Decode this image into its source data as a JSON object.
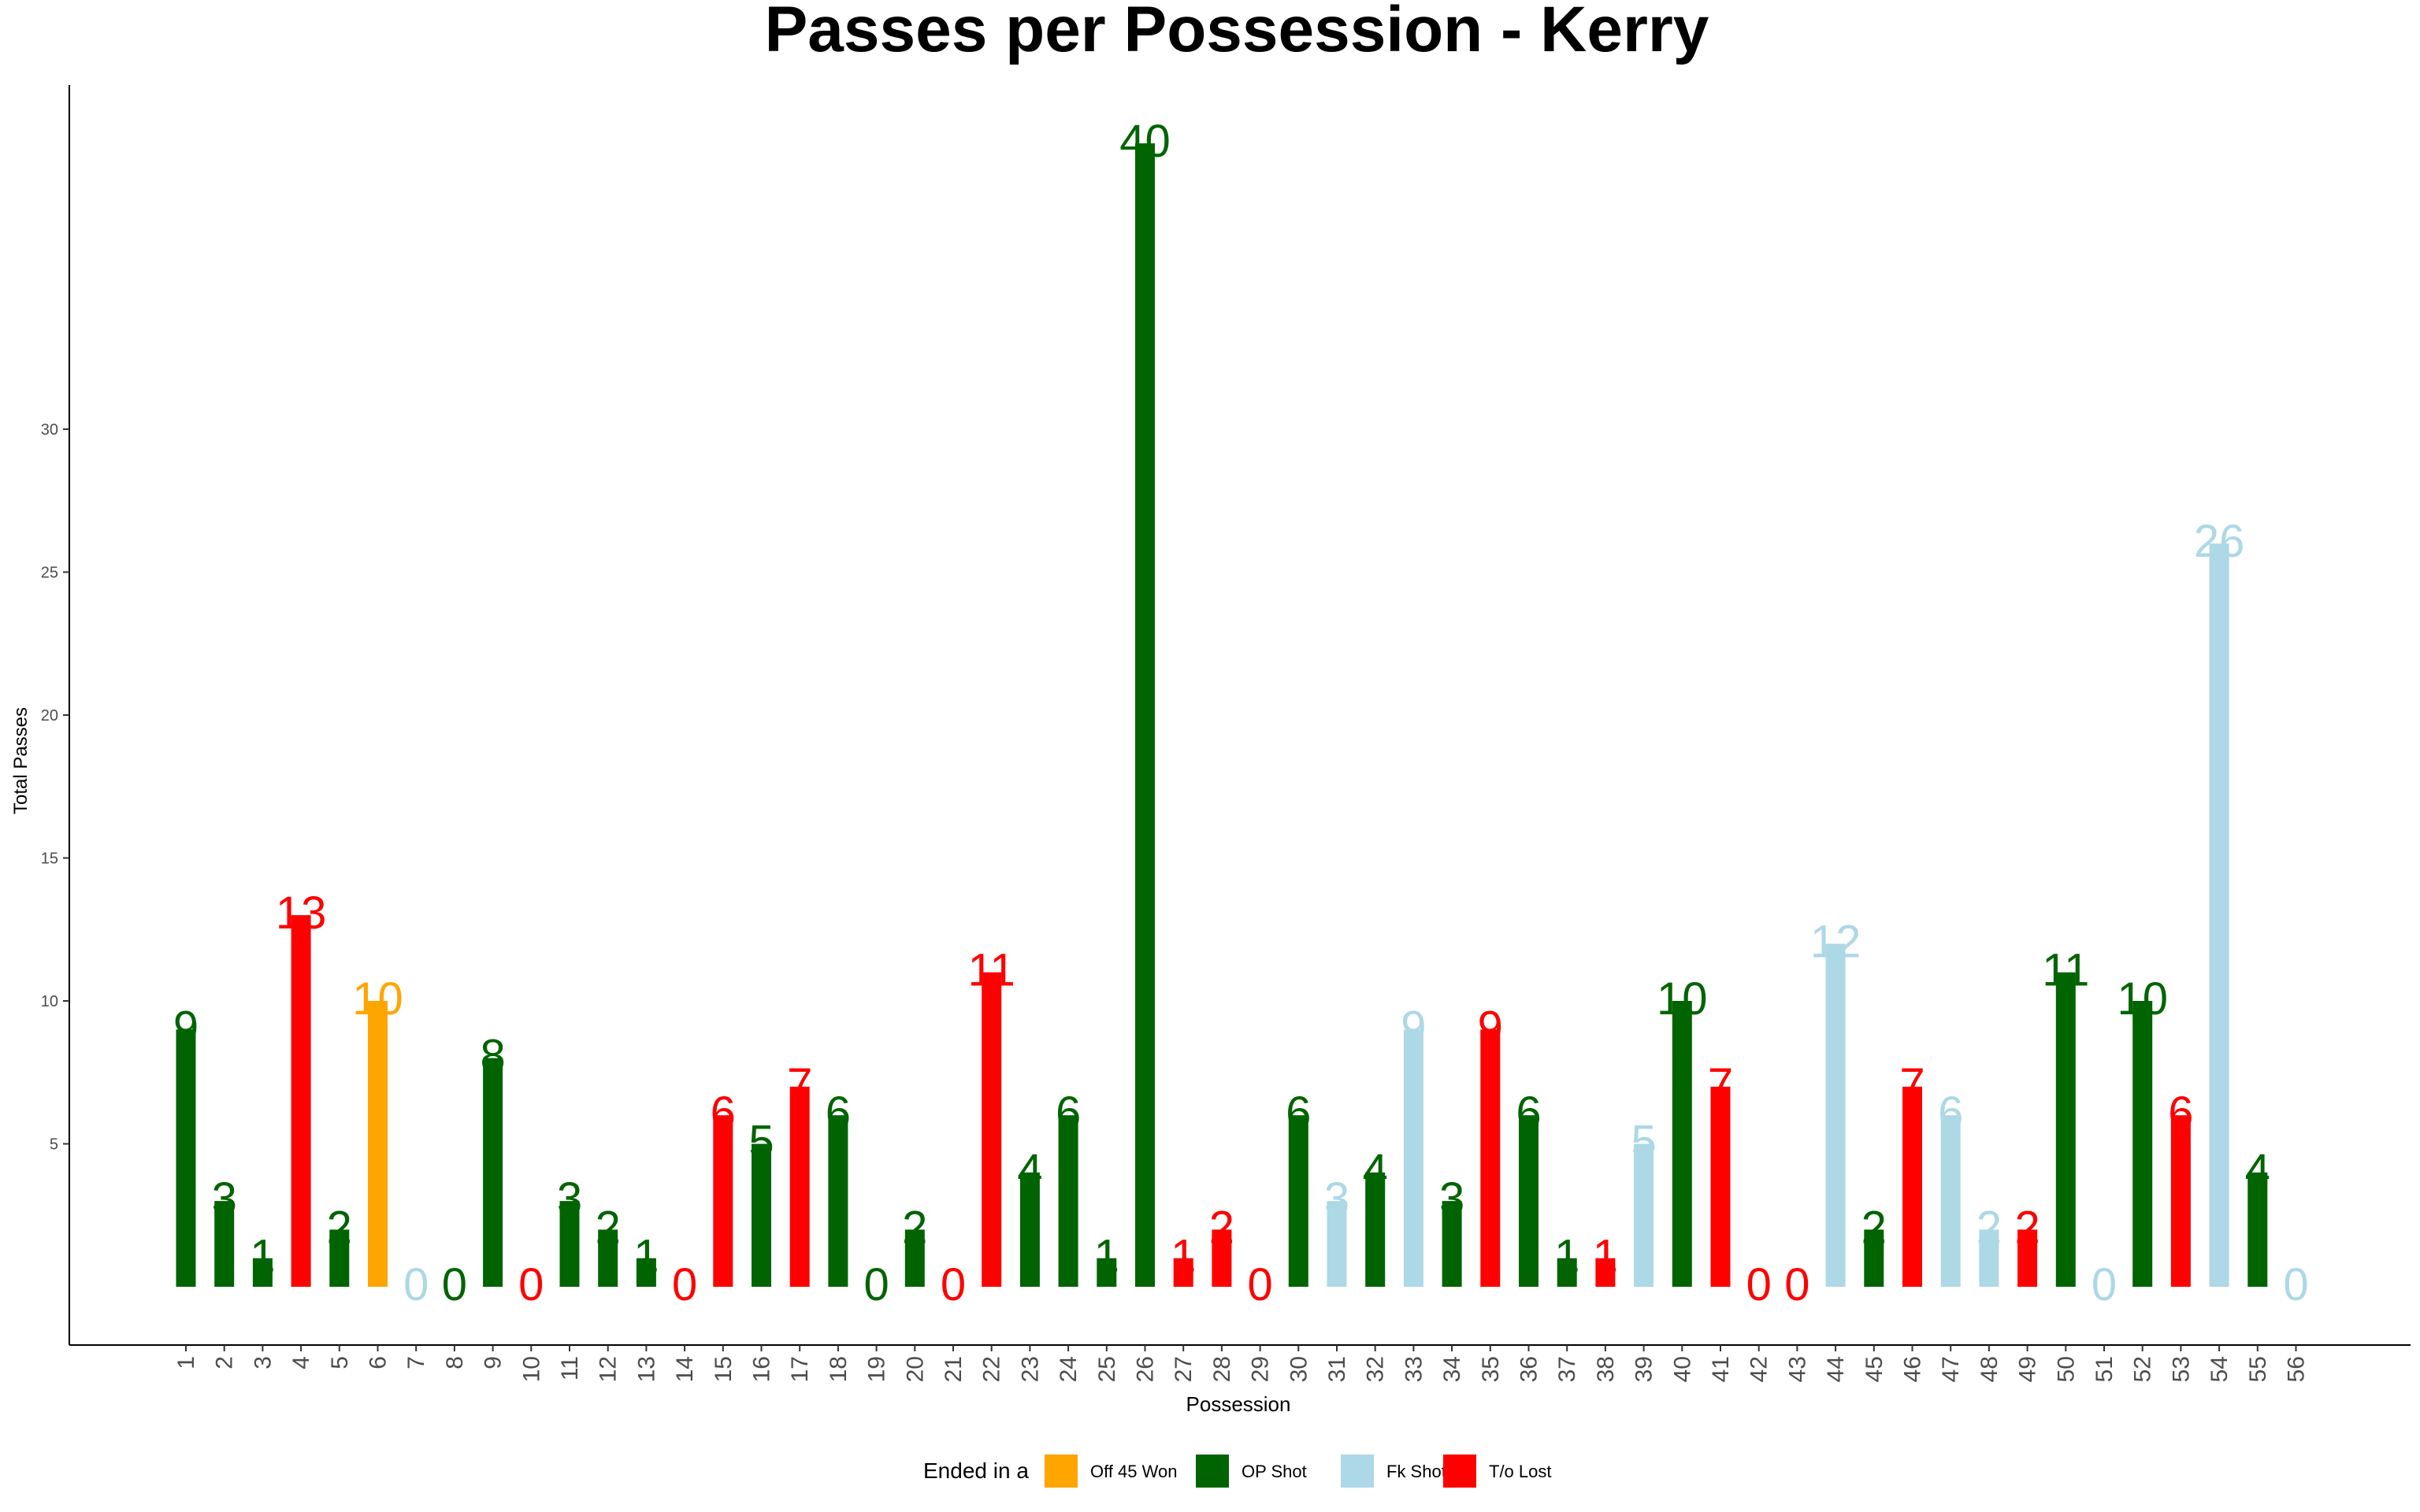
{
  "chart_data": {
    "type": "bar",
    "title": "Passes per Possession - Kerry",
    "xlabel": "Possession",
    "ylabel": "Total Passes",
    "y_ticks": [
      5,
      10,
      15,
      20,
      25,
      30
    ],
    "ylim": [
      -2,
      42
    ],
    "grid": false,
    "legend": {
      "title": "Ended in a",
      "placement": "bottom",
      "entries": [
        {
          "label": "Off 45 Won",
          "color": "#FFA500"
        },
        {
          "label": "OP Shot",
          "color": "#006400"
        },
        {
          "label": "Fk Shot",
          "color": "#ADD8E6"
        },
        {
          "label": "T/o Lost",
          "color": "#FF0000"
        }
      ]
    },
    "categories": [
      "1",
      "2",
      "3",
      "4",
      "5",
      "6",
      "7",
      "8",
      "9",
      "10",
      "11",
      "12",
      "13",
      "14",
      "15",
      "16",
      "17",
      "18",
      "19",
      "20",
      "21",
      "22",
      "23",
      "24",
      "25",
      "26",
      "27",
      "28",
      "29",
      "30",
      "31",
      "32",
      "33",
      "34",
      "35",
      "36",
      "37",
      "38",
      "39",
      "40",
      "41",
      "42",
      "43",
      "44",
      "45",
      "46",
      "47",
      "48",
      "49",
      "50",
      "51",
      "52",
      "53",
      "54",
      "55",
      "56"
    ],
    "values": [
      9,
      3,
      1,
      13,
      2,
      10,
      0,
      0,
      8,
      0,
      3,
      2,
      1,
      0,
      6,
      5,
      7,
      6,
      0,
      2,
      0,
      11,
      4,
      6,
      1,
      40,
      1,
      2,
      0,
      6,
      3,
      4,
      9,
      3,
      9,
      6,
      1,
      1,
      5,
      10,
      7,
      0,
      0,
      12,
      2,
      7,
      6,
      2,
      2,
      11,
      0,
      10,
      6,
      26,
      4,
      0
    ],
    "outcomes": [
      "OP Shot",
      "OP Shot",
      "OP Shot",
      "T/o Lost",
      "OP Shot",
      "Off 45 Won",
      "Fk Shot",
      "OP Shot",
      "OP Shot",
      "T/o Lost",
      "OP Shot",
      "OP Shot",
      "OP Shot",
      "T/o Lost",
      "T/o Lost",
      "OP Shot",
      "T/o Lost",
      "OP Shot",
      "OP Shot",
      "OP Shot",
      "T/o Lost",
      "T/o Lost",
      "OP Shot",
      "OP Shot",
      "OP Shot",
      "OP Shot",
      "T/o Lost",
      "T/o Lost",
      "T/o Lost",
      "OP Shot",
      "Fk Shot",
      "OP Shot",
      "Fk Shot",
      "OP Shot",
      "T/o Lost",
      "OP Shot",
      "OP Shot",
      "T/o Lost",
      "Fk Shot",
      "OP Shot",
      "T/o Lost",
      "T/o Lost",
      "T/o Lost",
      "Fk Shot",
      "OP Shot",
      "T/o Lost",
      "Fk Shot",
      "Fk Shot",
      "T/o Lost",
      "OP Shot",
      "Fk Shot",
      "OP Shot",
      "T/o Lost",
      "Fk Shot",
      "OP Shot",
      "Fk Shot"
    ]
  }
}
